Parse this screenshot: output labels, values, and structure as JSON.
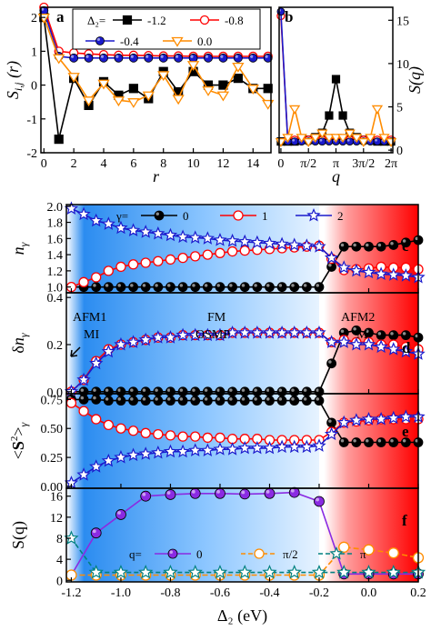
{
  "chart_data": [
    {
      "panel": "a",
      "type": "line",
      "xlabel": "r",
      "ylabel": "S_ij (r)",
      "xlim": [
        0,
        15
      ],
      "ylim": [
        -2,
        2.3
      ],
      "xticks": [
        "0",
        "2",
        "4",
        "6",
        "8",
        "10",
        "12",
        "14"
      ],
      "yticks": [
        "-2",
        "-1",
        "0",
        "1",
        "2"
      ],
      "legend_title": "Δ₂=",
      "x": [
        0,
        1,
        2,
        3,
        4,
        5,
        6,
        7,
        8,
        9,
        10,
        11,
        12,
        13,
        14,
        15
      ],
      "series": [
        {
          "name": "-1.2",
          "marker": "square",
          "color": "#000000",
          "filled": true,
          "values": [
            2.0,
            -1.6,
            0.2,
            -0.6,
            0.1,
            -0.3,
            -0.1,
            -0.4,
            0.4,
            -0.2,
            0.4,
            0.0,
            0.0,
            0.2,
            -0.1,
            -0.1
          ]
        },
        {
          "name": "-0.8",
          "marker": "circle",
          "color": "#ff0000",
          "filled": false,
          "values": [
            2.3,
            1.0,
            0.95,
            0.92,
            0.9,
            0.88,
            0.88,
            0.87,
            0.86,
            0.86,
            0.85,
            0.85,
            0.85,
            0.85,
            0.85,
            0.85
          ]
        },
        {
          "name": "-0.4",
          "marker": "circle",
          "color": "#1a1acc",
          "filled": true,
          "values": [
            2.2,
            0.85,
            0.8,
            0.8,
            0.8,
            0.8,
            0.8,
            0.8,
            0.8,
            0.8,
            0.8,
            0.8,
            0.8,
            0.8,
            0.8,
            0.8
          ]
        },
        {
          "name": "0.0",
          "marker": "triangle-down",
          "color": "#ff8c00",
          "filled": false,
          "values": [
            2.0,
            0.8,
            0.25,
            -0.45,
            0.05,
            -0.45,
            -0.5,
            -0.3,
            0.3,
            -0.4,
            0.6,
            -0.15,
            -0.3,
            0.55,
            -0.1,
            -0.55
          ]
        }
      ]
    },
    {
      "panel": "b",
      "type": "line",
      "xlabel": "q",
      "ylabel": "S(q)",
      "xlim": [
        0,
        6.2832
      ],
      "ylim": [
        0,
        16
      ],
      "xticks": [
        "0",
        "π/2",
        "π",
        "3π/2",
        "2π"
      ],
      "yticks": [
        "0",
        "5",
        "10",
        "15"
      ],
      "x": [
        0,
        0.3927,
        0.7854,
        1.1781,
        1.5708,
        1.9635,
        2.3562,
        2.7489,
        3.1416,
        3.5343,
        3.927,
        4.3197,
        4.7124,
        5.1051,
        5.4978,
        5.8905,
        6.2832
      ],
      "series": [
        {
          "name": "-1.2",
          "values": [
            1.0,
            1.0,
            1.0,
            1.2,
            1.2,
            1.5,
            2.0,
            4.0,
            8.2,
            4.0,
            2.0,
            1.5,
            1.2,
            1.2,
            1.0,
            1.0,
            1.0
          ]
        },
        {
          "name": "-0.8",
          "values": [
            15.5,
            1.2,
            1.2,
            1.2,
            1.2,
            1.2,
            1.2,
            1.2,
            1.2,
            1.2,
            1.2,
            1.2,
            1.2,
            1.2,
            1.2,
            1.2,
            1.2
          ]
        },
        {
          "name": "-0.4",
          "values": [
            16.0,
            1.0,
            1.0,
            1.0,
            1.0,
            1.0,
            1.0,
            1.0,
            1.0,
            1.0,
            1.0,
            1.0,
            1.0,
            1.0,
            1.0,
            1.0,
            1.0
          ]
        },
        {
          "name": "0.0",
          "values": [
            1.0,
            1.5,
            4.8,
            1.5,
            1.0,
            1.5,
            2.0,
            1.5,
            1.5,
            1.5,
            2.0,
            1.5,
            1.0,
            1.5,
            4.8,
            1.5,
            1.0
          ]
        }
      ]
    },
    {
      "panel": "c",
      "type": "line",
      "ylabel": "n_γ",
      "xlim": [
        -1.22,
        0.2
      ],
      "ylim": [
        0.95,
        2.02
      ],
      "yticks": [
        "1.0",
        "1.2",
        "1.4",
        "1.6",
        "1.8",
        "2.0"
      ],
      "legend_title": "γ=",
      "x": [
        -1.2,
        -1.15,
        -1.1,
        -1.05,
        -1.0,
        -0.95,
        -0.9,
        -0.85,
        -0.8,
        -0.75,
        -0.7,
        -0.65,
        -0.6,
        -0.55,
        -0.5,
        -0.45,
        -0.4,
        -0.35,
        -0.3,
        -0.25,
        -0.2,
        -0.15,
        -0.1,
        -0.05,
        0.0,
        0.05,
        0.1,
        0.15,
        0.2
      ],
      "series": [
        {
          "name": "0",
          "values": [
            1.0,
            1.0,
            1.0,
            1.0,
            1.0,
            1.0,
            1.0,
            1.0,
            1.0,
            1.0,
            1.0,
            1.0,
            1.0,
            1.0,
            1.0,
            1.0,
            1.0,
            1.0,
            1.0,
            1.0,
            1.0,
            1.25,
            1.5,
            1.5,
            1.5,
            1.5,
            1.52,
            1.55,
            1.58
          ]
        },
        {
          "name": "1",
          "values": [
            1.0,
            1.06,
            1.12,
            1.2,
            1.25,
            1.28,
            1.3,
            1.32,
            1.34,
            1.36,
            1.38,
            1.4,
            1.42,
            1.44,
            1.45,
            1.46,
            1.47,
            1.48,
            1.49,
            1.5,
            1.51,
            1.35,
            1.21,
            1.22,
            1.23,
            1.25,
            1.24,
            1.24,
            1.22
          ]
        },
        {
          "name": "2",
          "values": [
            1.97,
            1.9,
            1.82,
            1.78,
            1.73,
            1.7,
            1.68,
            1.66,
            1.64,
            1.62,
            1.61,
            1.6,
            1.58,
            1.57,
            1.56,
            1.55,
            1.54,
            1.53,
            1.52,
            1.51,
            1.5,
            1.36,
            1.24,
            1.2,
            1.18,
            1.16,
            1.15,
            1.14,
            1.12
          ]
        }
      ]
    },
    {
      "panel": "d",
      "type": "line",
      "ylabel": "δn_γ",
      "xlim": [
        -1.22,
        0.2
      ],
      "ylim": [
        0,
        0.42
      ],
      "yticks": [
        "0.0",
        "0.2",
        "0.4"
      ],
      "annotations": [
        "AFM1",
        "MI",
        "FM",
        "OSMP",
        "AFM2",
        "M"
      ],
      "x": [
        -1.2,
        -1.15,
        -1.1,
        -1.05,
        -1.0,
        -0.95,
        -0.9,
        -0.85,
        -0.8,
        -0.75,
        -0.7,
        -0.65,
        -0.6,
        -0.55,
        -0.5,
        -0.45,
        -0.4,
        -0.35,
        -0.3,
        -0.25,
        -0.2,
        -0.15,
        -0.1,
        -0.05,
        0.0,
        0.05,
        0.1,
        0.15,
        0.2
      ],
      "series": [
        {
          "name": "0",
          "values": [
            0.0,
            0.0,
            0.0,
            0.0,
            0.0,
            0.0,
            0.0,
            0.0,
            0.0,
            0.0,
            0.0,
            0.0,
            0.0,
            0.0,
            0.0,
            0.0,
            0.0,
            0.0,
            0.0,
            0.0,
            0.0,
            0.12,
            0.25,
            0.26,
            0.25,
            0.24,
            0.24,
            0.24,
            0.23
          ]
        },
        {
          "name": "1",
          "values": [
            0.0,
            0.05,
            0.13,
            0.18,
            0.2,
            0.21,
            0.22,
            0.23,
            0.23,
            0.24,
            0.24,
            0.24,
            0.24,
            0.25,
            0.25,
            0.25,
            0.25,
            0.25,
            0.25,
            0.25,
            0.25,
            0.21,
            0.22,
            0.21,
            0.21,
            0.2,
            0.2,
            0.19,
            0.18
          ]
        },
        {
          "name": "2",
          "values": [
            0.0,
            0.05,
            0.12,
            0.17,
            0.2,
            0.21,
            0.22,
            0.23,
            0.23,
            0.24,
            0.24,
            0.24,
            0.24,
            0.25,
            0.25,
            0.25,
            0.25,
            0.25,
            0.25,
            0.25,
            0.25,
            0.21,
            0.21,
            0.2,
            0.2,
            0.19,
            0.18,
            0.17,
            0.16
          ]
        }
      ]
    },
    {
      "panel": "e",
      "type": "line",
      "ylabel": "<S²>_γ",
      "xlim": [
        -1.22,
        0.2
      ],
      "ylim": [
        0,
        0.8
      ],
      "yticks": [
        "0.00",
        "0.25",
        "0.50",
        "0.75"
      ],
      "x": [
        -1.2,
        -1.15,
        -1.1,
        -1.05,
        -1.0,
        -0.95,
        -0.9,
        -0.85,
        -0.8,
        -0.75,
        -0.7,
        -0.65,
        -0.6,
        -0.55,
        -0.5,
        -0.45,
        -0.4,
        -0.35,
        -0.3,
        -0.25,
        -0.2,
        -0.15,
        -0.1,
        -0.05,
        0.0,
        0.05,
        0.1,
        0.15,
        0.2
      ],
      "series": [
        {
          "name": "0",
          "values": [
            0.75,
            0.75,
            0.75,
            0.74,
            0.74,
            0.74,
            0.74,
            0.74,
            0.74,
            0.74,
            0.74,
            0.74,
            0.74,
            0.74,
            0.74,
            0.74,
            0.74,
            0.74,
            0.74,
            0.74,
            0.74,
            0.55,
            0.38,
            0.38,
            0.38,
            0.38,
            0.38,
            0.38,
            0.38
          ]
        },
        {
          "name": "1",
          "values": [
            0.72,
            0.65,
            0.58,
            0.53,
            0.5,
            0.48,
            0.46,
            0.45,
            0.44,
            0.43,
            0.43,
            0.42,
            0.42,
            0.41,
            0.41,
            0.41,
            0.4,
            0.4,
            0.4,
            0.4,
            0.4,
            0.47,
            0.55,
            0.56,
            0.57,
            0.58,
            0.58,
            0.58,
            0.58
          ]
        },
        {
          "name": "2",
          "values": [
            0.03,
            0.1,
            0.17,
            0.22,
            0.25,
            0.27,
            0.28,
            0.29,
            0.3,
            0.3,
            0.31,
            0.31,
            0.32,
            0.32,
            0.33,
            0.33,
            0.33,
            0.34,
            0.34,
            0.34,
            0.35,
            0.45,
            0.55,
            0.57,
            0.58,
            0.58,
            0.59,
            0.6,
            0.6
          ]
        }
      ]
    },
    {
      "panel": "f",
      "type": "line",
      "ylabel": "S(q)",
      "xlabel": "Δ₂ (eV)",
      "xlim": [
        -1.22,
        0.2
      ],
      "ylim": [
        0,
        17.5
      ],
      "yticks": [
        "0",
        "4",
        "8",
        "12",
        "16"
      ],
      "xticks": [
        "-1.2",
        "-1.0",
        "-0.8",
        "-0.6",
        "-0.4",
        "-0.2",
        "0.0",
        "0.2"
      ],
      "legend_title": "q=",
      "x": [
        -1.2,
        -1.1,
        -1.0,
        -0.9,
        -0.8,
        -0.7,
        -0.6,
        -0.5,
        -0.4,
        -0.3,
        -0.2,
        -0.1,
        0.0,
        0.1,
        0.2
      ],
      "series": [
        {
          "name": "0",
          "values": [
            1.0,
            9.0,
            12.5,
            16.0,
            16.3,
            16.5,
            16.5,
            16.4,
            16.5,
            16.7,
            15.0,
            1.2,
            1.2,
            1.2,
            1.2
          ]
        },
        {
          "name": "π/2",
          "values": [
            1.0,
            1.0,
            1.0,
            1.0,
            1.0,
            1.0,
            1.0,
            1.0,
            1.0,
            1.0,
            1.0,
            6.3,
            5.8,
            5.2,
            4.3
          ]
        },
        {
          "name": "π",
          "values": [
            8.0,
            1.5,
            1.5,
            1.5,
            1.5,
            1.5,
            1.5,
            1.5,
            1.5,
            1.5,
            1.5,
            1.5,
            1.5,
            1.5,
            1.5
          ]
        }
      ]
    }
  ],
  "labels": {
    "panel_a": "a",
    "panel_b": "b",
    "panel_c": "c",
    "panel_d": "d",
    "panel_e": "e",
    "panel_f": "f",
    "ann_afm1": "AFM1",
    "ann_mi": "MI",
    "ann_fm": "FM",
    "ann_osmp": "OSMP",
    "ann_afm2": "AFM2",
    "ann_m": "M"
  },
  "colors": {
    "series0": "#000000",
    "series1": "#ff0000",
    "series2": "#1a1acc",
    "series3": "#ff8c00",
    "f_series0": "#8a2be2",
    "f_series1": "#ff8c00",
    "f_series2": "#008080",
    "shade_blue": "#1e90ff",
    "shade_red": "#ff0000"
  }
}
